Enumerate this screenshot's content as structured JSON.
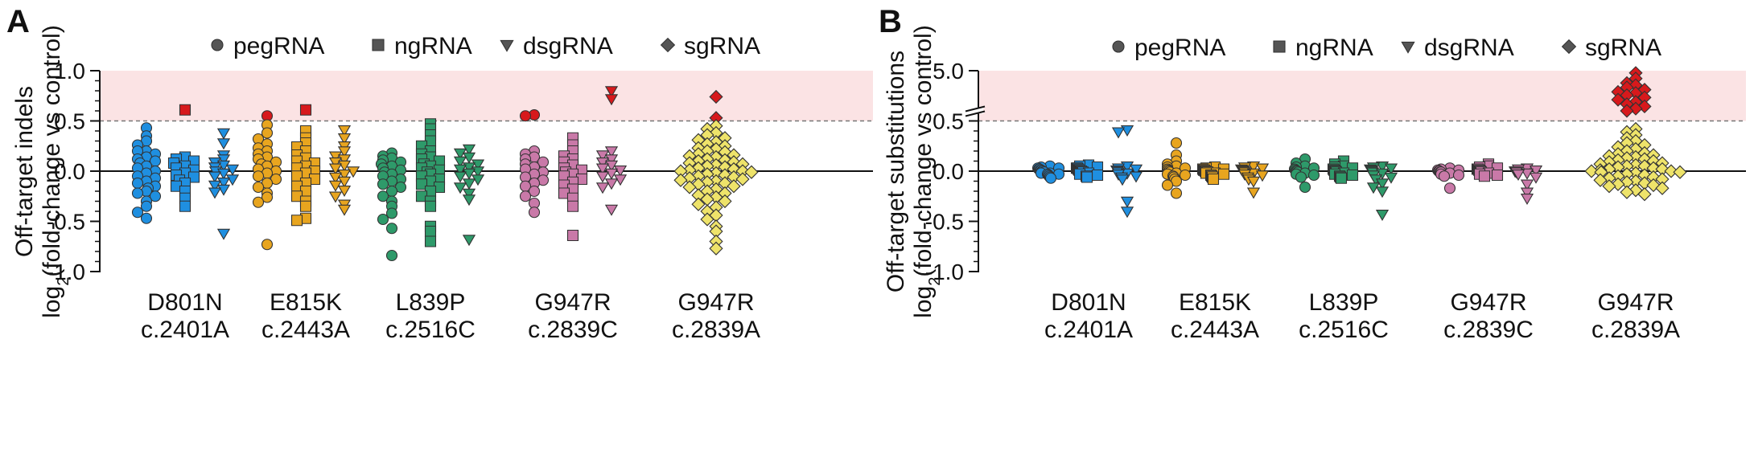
{
  "chart_data": [
    {
      "panel": "A",
      "type": "scatter",
      "ylabel_line1": "Off-target indels",
      "ylabel_prefix": "log",
      "ylabel_sub": "2",
      "ylabel_suffix": "(fold-change vs control)",
      "yticks": [
        {
          "value": 1.0,
          "label": "1.0"
        },
        {
          "value": 0.5,
          "label": "0.5"
        },
        {
          "value": 0.0,
          "label": "0.0"
        },
        {
          "value": -0.5,
          "label": "-0.5"
        },
        {
          "value": -1.0,
          "label": "-1.0"
        }
      ],
      "ylim": [
        -1.0,
        1.0
      ],
      "threshold": 0.5,
      "broken_axis": false,
      "legend": [
        {
          "shape": "circle",
          "label": "pegRNA"
        },
        {
          "shape": "square",
          "label": "ngRNA"
        },
        {
          "shape": "triangle-down",
          "label": "dsgRNA"
        },
        {
          "shape": "diamond",
          "label": "sgRNA"
        }
      ],
      "groups": [
        {
          "line1": "D801N",
          "line2": "c.2401A",
          "color": "#1f8fe0",
          "series": [
            {
              "shape": "circle",
              "values": [
                0.43,
                0.35,
                0.3,
                0.26,
                0.2,
                0.2,
                0.17,
                0.14,
                0.12,
                0.1,
                0.08,
                0.05,
                0.03,
                0.0,
                -0.02,
                -0.05,
                -0.07,
                -0.1,
                -0.12,
                -0.15,
                -0.17,
                -0.2,
                -0.22,
                -0.25,
                -0.3,
                -0.35,
                -0.41,
                -0.47
              ]
            },
            {
              "shape": "square",
              "values": [
                0.61,
                0.14,
                0.12,
                0.1,
                0.08,
                0.05,
                0.03,
                0.01,
                -0.02,
                -0.04,
                -0.06,
                -0.09,
                -0.12,
                -0.15,
                -0.2,
                -0.27,
                -0.35
              ]
            },
            {
              "shape": "triangle-down",
              "values": [
                0.38,
                0.28,
                0.16,
                0.12,
                0.09,
                0.06,
                0.04,
                0.02,
                0.0,
                -0.02,
                -0.05,
                -0.08,
                -0.11,
                -0.14,
                -0.18,
                -0.21,
                -0.62
              ]
            }
          ]
        },
        {
          "line1": "E815K",
          "line2": "c.2443A",
          "color": "#e8a51f",
          "series": [
            {
              "shape": "circle",
              "values": [
                0.55,
                0.46,
                0.38,
                0.32,
                0.27,
                0.23,
                0.2,
                0.17,
                0.14,
                0.12,
                0.09,
                0.07,
                0.05,
                0.02,
                0.0,
                -0.02,
                -0.05,
                -0.08,
                -0.12,
                -0.16,
                -0.22,
                -0.26,
                -0.31,
                -0.73
              ]
            },
            {
              "shape": "square",
              "values": [
                0.61,
                0.4,
                0.33,
                0.28,
                0.24,
                0.2,
                0.16,
                0.13,
                0.1,
                0.08,
                0.05,
                0.03,
                0.0,
                -0.02,
                -0.05,
                -0.08,
                -0.12,
                -0.15,
                -0.2,
                -0.25,
                -0.3,
                -0.35,
                -0.47,
                -0.49
              ]
            },
            {
              "shape": "triangle-down",
              "values": [
                0.41,
                0.33,
                0.25,
                0.2,
                0.15,
                0.12,
                0.09,
                0.06,
                0.03,
                0.0,
                -0.03,
                -0.06,
                -0.1,
                -0.14,
                -0.19,
                -0.25,
                -0.33,
                -0.38
              ]
            }
          ]
        },
        {
          "line1": "L839P",
          "line2": "c.2516C",
          "color": "#2e9a6a",
          "series": [
            {
              "shape": "circle",
              "values": [
                0.18,
                0.15,
                0.13,
                0.11,
                0.09,
                0.07,
                0.05,
                0.03,
                0.01,
                -0.01,
                -0.03,
                -0.05,
                -0.08,
                -0.1,
                -0.13,
                -0.16,
                -0.2,
                -0.25,
                -0.3,
                -0.35,
                -0.42,
                -0.48,
                -0.57,
                -0.84
              ]
            },
            {
              "shape": "square",
              "values": [
                0.47,
                0.42,
                0.36,
                0.3,
                0.25,
                0.2,
                0.17,
                0.14,
                0.12,
                0.1,
                0.07,
                0.05,
                0.03,
                0.01,
                -0.01,
                -0.03,
                -0.05,
                -0.08,
                -0.1,
                -0.13,
                -0.16,
                -0.2,
                -0.25,
                -0.3,
                -0.35,
                -0.55,
                -0.6,
                -0.7
              ]
            },
            {
              "shape": "triangle-down",
              "values": [
                0.22,
                0.18,
                0.14,
                0.1,
                0.07,
                0.04,
                0.02,
                0.0,
                -0.02,
                -0.05,
                -0.08,
                -0.12,
                -0.16,
                -0.22,
                -0.28,
                -0.68
              ]
            }
          ]
        },
        {
          "line1": "G947R",
          "line2": "c.2839C",
          "color": "#c979a8",
          "series": [
            {
              "shape": "circle",
              "values": [
                0.56,
                0.55,
                0.2,
                0.17,
                0.14,
                0.12,
                0.09,
                0.07,
                0.04,
                0.02,
                -0.01,
                -0.03,
                -0.06,
                -0.09,
                -0.12,
                -0.15,
                -0.2,
                -0.25,
                -0.32,
                -0.41
              ]
            },
            {
              "shape": "square",
              "values": [
                0.33,
                0.26,
                0.2,
                0.15,
                0.12,
                0.09,
                0.06,
                0.03,
                0.01,
                -0.01,
                -0.03,
                -0.05,
                -0.08,
                -0.11,
                -0.14,
                -0.18,
                -0.22,
                -0.27,
                -0.35,
                -0.64
              ]
            },
            {
              "shape": "triangle-down",
              "values": [
                0.8,
                0.72,
                0.2,
                0.16,
                0.12,
                0.09,
                0.06,
                0.03,
                0.01,
                -0.02,
                -0.05,
                -0.08,
                -0.12,
                -0.16,
                -0.38
              ]
            }
          ]
        },
        {
          "line1": "G947R",
          "line2": "c.2839A",
          "color": "#eee36a",
          "series": [
            {
              "shape": "diamond",
              "values": [
                0.74,
                0.53,
                0.45,
                0.42,
                0.38,
                0.36,
                0.33,
                0.31,
                0.29,
                0.27,
                0.25,
                0.23,
                0.22,
                0.2,
                0.19,
                0.17,
                0.16,
                0.15,
                0.14,
                0.12,
                0.11,
                0.1,
                0.09,
                0.08,
                0.07,
                0.06,
                0.05,
                0.04,
                0.03,
                0.02,
                0.01,
                0.0,
                0.0,
                -0.01,
                -0.02,
                -0.03,
                -0.04,
                -0.05,
                -0.06,
                -0.07,
                -0.08,
                -0.09,
                -0.1,
                -0.11,
                -0.12,
                -0.13,
                -0.15,
                -0.16,
                -0.18,
                -0.2,
                -0.22,
                -0.24,
                -0.26,
                -0.28,
                -0.3,
                -0.33,
                -0.36,
                -0.4,
                -0.44,
                -0.48,
                -0.55,
                -0.6,
                -0.7,
                -0.77
              ]
            }
          ]
        }
      ]
    },
    {
      "panel": "B",
      "type": "scatter",
      "ylabel_line1": "Off-target substitutions",
      "ylabel_prefix": "log",
      "ylabel_sub": "2",
      "ylabel_suffix": "(fold-change vs control)",
      "yticks": [
        {
          "value": 5.0,
          "label": "5.0"
        },
        {
          "value": 0.5,
          "label": "0.5"
        },
        {
          "value": 0.0,
          "label": "0.0"
        },
        {
          "value": -0.5,
          "label": "-0.5"
        },
        {
          "value": -1.0,
          "label": "-1.0"
        }
      ],
      "ylim": [
        -1.0,
        5.0
      ],
      "threshold": 0.5,
      "broken_axis": true,
      "break_between": [
        0.5,
        5.0
      ],
      "legend": [
        {
          "shape": "circle",
          "label": "pegRNA"
        },
        {
          "shape": "square",
          "label": "ngRNA"
        },
        {
          "shape": "triangle-down",
          "label": "dsgRNA"
        },
        {
          "shape": "diamond",
          "label": "sgRNA"
        }
      ],
      "groups": [
        {
          "line1": "D801N",
          "line2": "c.2401A",
          "color": "#1f8fe0",
          "series": [
            {
              "shape": "circle",
              "values": [
                0.05,
                0.04,
                0.03,
                0.03,
                0.02,
                0.02,
                0.01,
                0.01,
                0.0,
                0.0,
                -0.01,
                -0.01,
                -0.02,
                -0.02,
                -0.03,
                -0.03,
                -0.04,
                -0.05,
                -0.06,
                -0.07
              ]
            },
            {
              "shape": "square",
              "values": [
                0.06,
                0.05,
                0.04,
                0.03,
                0.03,
                0.02,
                0.01,
                0.01,
                0.0,
                0.0,
                -0.01,
                -0.01,
                -0.02,
                -0.03,
                -0.04,
                -0.05,
                -0.06
              ]
            },
            {
              "shape": "triangle-down",
              "values": [
                0.41,
                0.39,
                0.05,
                0.03,
                0.02,
                0.01,
                0.0,
                -0.01,
                -0.02,
                -0.03,
                -0.05,
                -0.06,
                -0.08,
                -0.3,
                -0.4
              ]
            }
          ]
        },
        {
          "line1": "E815K",
          "line2": "c.2443A",
          "color": "#e8a51f",
          "series": [
            {
              "shape": "circle",
              "values": [
                0.28,
                0.16,
                0.1,
                0.07,
                0.05,
                0.04,
                0.03,
                0.02,
                0.01,
                0.0,
                -0.01,
                -0.02,
                -0.03,
                -0.04,
                -0.05,
                -0.06,
                -0.08,
                -0.1,
                -0.14,
                -0.22
              ]
            },
            {
              "shape": "square",
              "values": [
                0.04,
                0.03,
                0.02,
                0.02,
                0.01,
                0.01,
                0.0,
                0.0,
                -0.01,
                -0.01,
                -0.02,
                -0.02,
                -0.03,
                -0.04,
                -0.05,
                -0.06,
                -0.08
              ]
            },
            {
              "shape": "triangle-down",
              "values": [
                0.05,
                0.04,
                0.03,
                0.02,
                0.01,
                0.0,
                0.0,
                -0.01,
                -0.02,
                -0.03,
                -0.04,
                -0.06,
                -0.08,
                -0.1,
                -0.21
              ]
            }
          ]
        },
        {
          "line1": "L839P",
          "line2": "c.2516C",
          "color": "#2e9a6a",
          "series": [
            {
              "shape": "circle",
              "values": [
                0.12,
                0.08,
                0.05,
                0.04,
                0.03,
                0.02,
                0.01,
                0.0,
                0.0,
                -0.01,
                -0.02,
                -0.03,
                -0.04,
                -0.06,
                -0.16
              ]
            },
            {
              "shape": "square",
              "values": [
                0.1,
                0.07,
                0.05,
                0.04,
                0.03,
                0.02,
                0.01,
                0.0,
                0.0,
                -0.01,
                -0.02,
                -0.03,
                -0.04,
                -0.05,
                -0.06,
                -0.07
              ]
            },
            {
              "shape": "triangle-down",
              "values": [
                0.05,
                0.04,
                0.03,
                0.02,
                0.01,
                0.0,
                -0.01,
                -0.02,
                -0.04,
                -0.06,
                -0.08,
                -0.12,
                -0.16,
                -0.2,
                -0.43
              ]
            }
          ]
        },
        {
          "line1": "G947R",
          "line2": "c.2839C",
          "color": "#c979a8",
          "series": [
            {
              "shape": "circle",
              "values": [
                0.03,
                0.02,
                0.01,
                0.01,
                0.0,
                0.0,
                -0.01,
                -0.01,
                -0.02,
                -0.03,
                -0.04,
                -0.05,
                -0.17
              ]
            },
            {
              "shape": "square",
              "values": [
                0.07,
                0.05,
                0.04,
                0.03,
                0.02,
                0.02,
                0.01,
                0.0,
                0.0,
                -0.01,
                -0.02,
                -0.03,
                -0.04,
                -0.05
              ]
            },
            {
              "shape": "triangle-down",
              "values": [
                0.03,
                0.02,
                0.01,
                0.0,
                0.0,
                -0.01,
                -0.02,
                -0.03,
                -0.06,
                -0.13,
                -0.21,
                -0.27
              ]
            }
          ]
        },
        {
          "line1": "G947R",
          "line2": "c.2839A",
          "color": "#eee36a",
          "series": [
            {
              "shape": "diamond",
              "values": [
                4.8,
                4.3,
                3.9,
                3.7,
                3.5,
                3.3,
                3.1,
                3.0,
                2.8,
                2.6,
                2.4,
                2.2,
                2.0,
                1.8,
                1.6,
                1.4,
                0.42,
                0.39,
                0.36,
                0.33,
                0.3,
                0.28,
                0.26,
                0.24,
                0.22,
                0.2,
                0.18,
                0.17,
                0.16,
                0.15,
                0.14,
                0.13,
                0.12,
                0.11,
                0.1,
                0.09,
                0.08,
                0.07,
                0.06,
                0.05,
                0.05,
                0.04,
                0.03,
                0.02,
                0.02,
                0.01,
                0.0,
                0.0,
                -0.01,
                -0.01,
                -0.02,
                -0.03,
                -0.04,
                -0.05,
                -0.06,
                -0.07,
                -0.08,
                -0.09,
                -0.1,
                -0.11,
                -0.12,
                -0.13,
                -0.14,
                -0.15,
                -0.17,
                -0.19,
                -0.21,
                -0.23
              ]
            }
          ]
        }
      ]
    }
  ],
  "highlight_color": "#d7191c",
  "band_color": "#fbe3e4"
}
